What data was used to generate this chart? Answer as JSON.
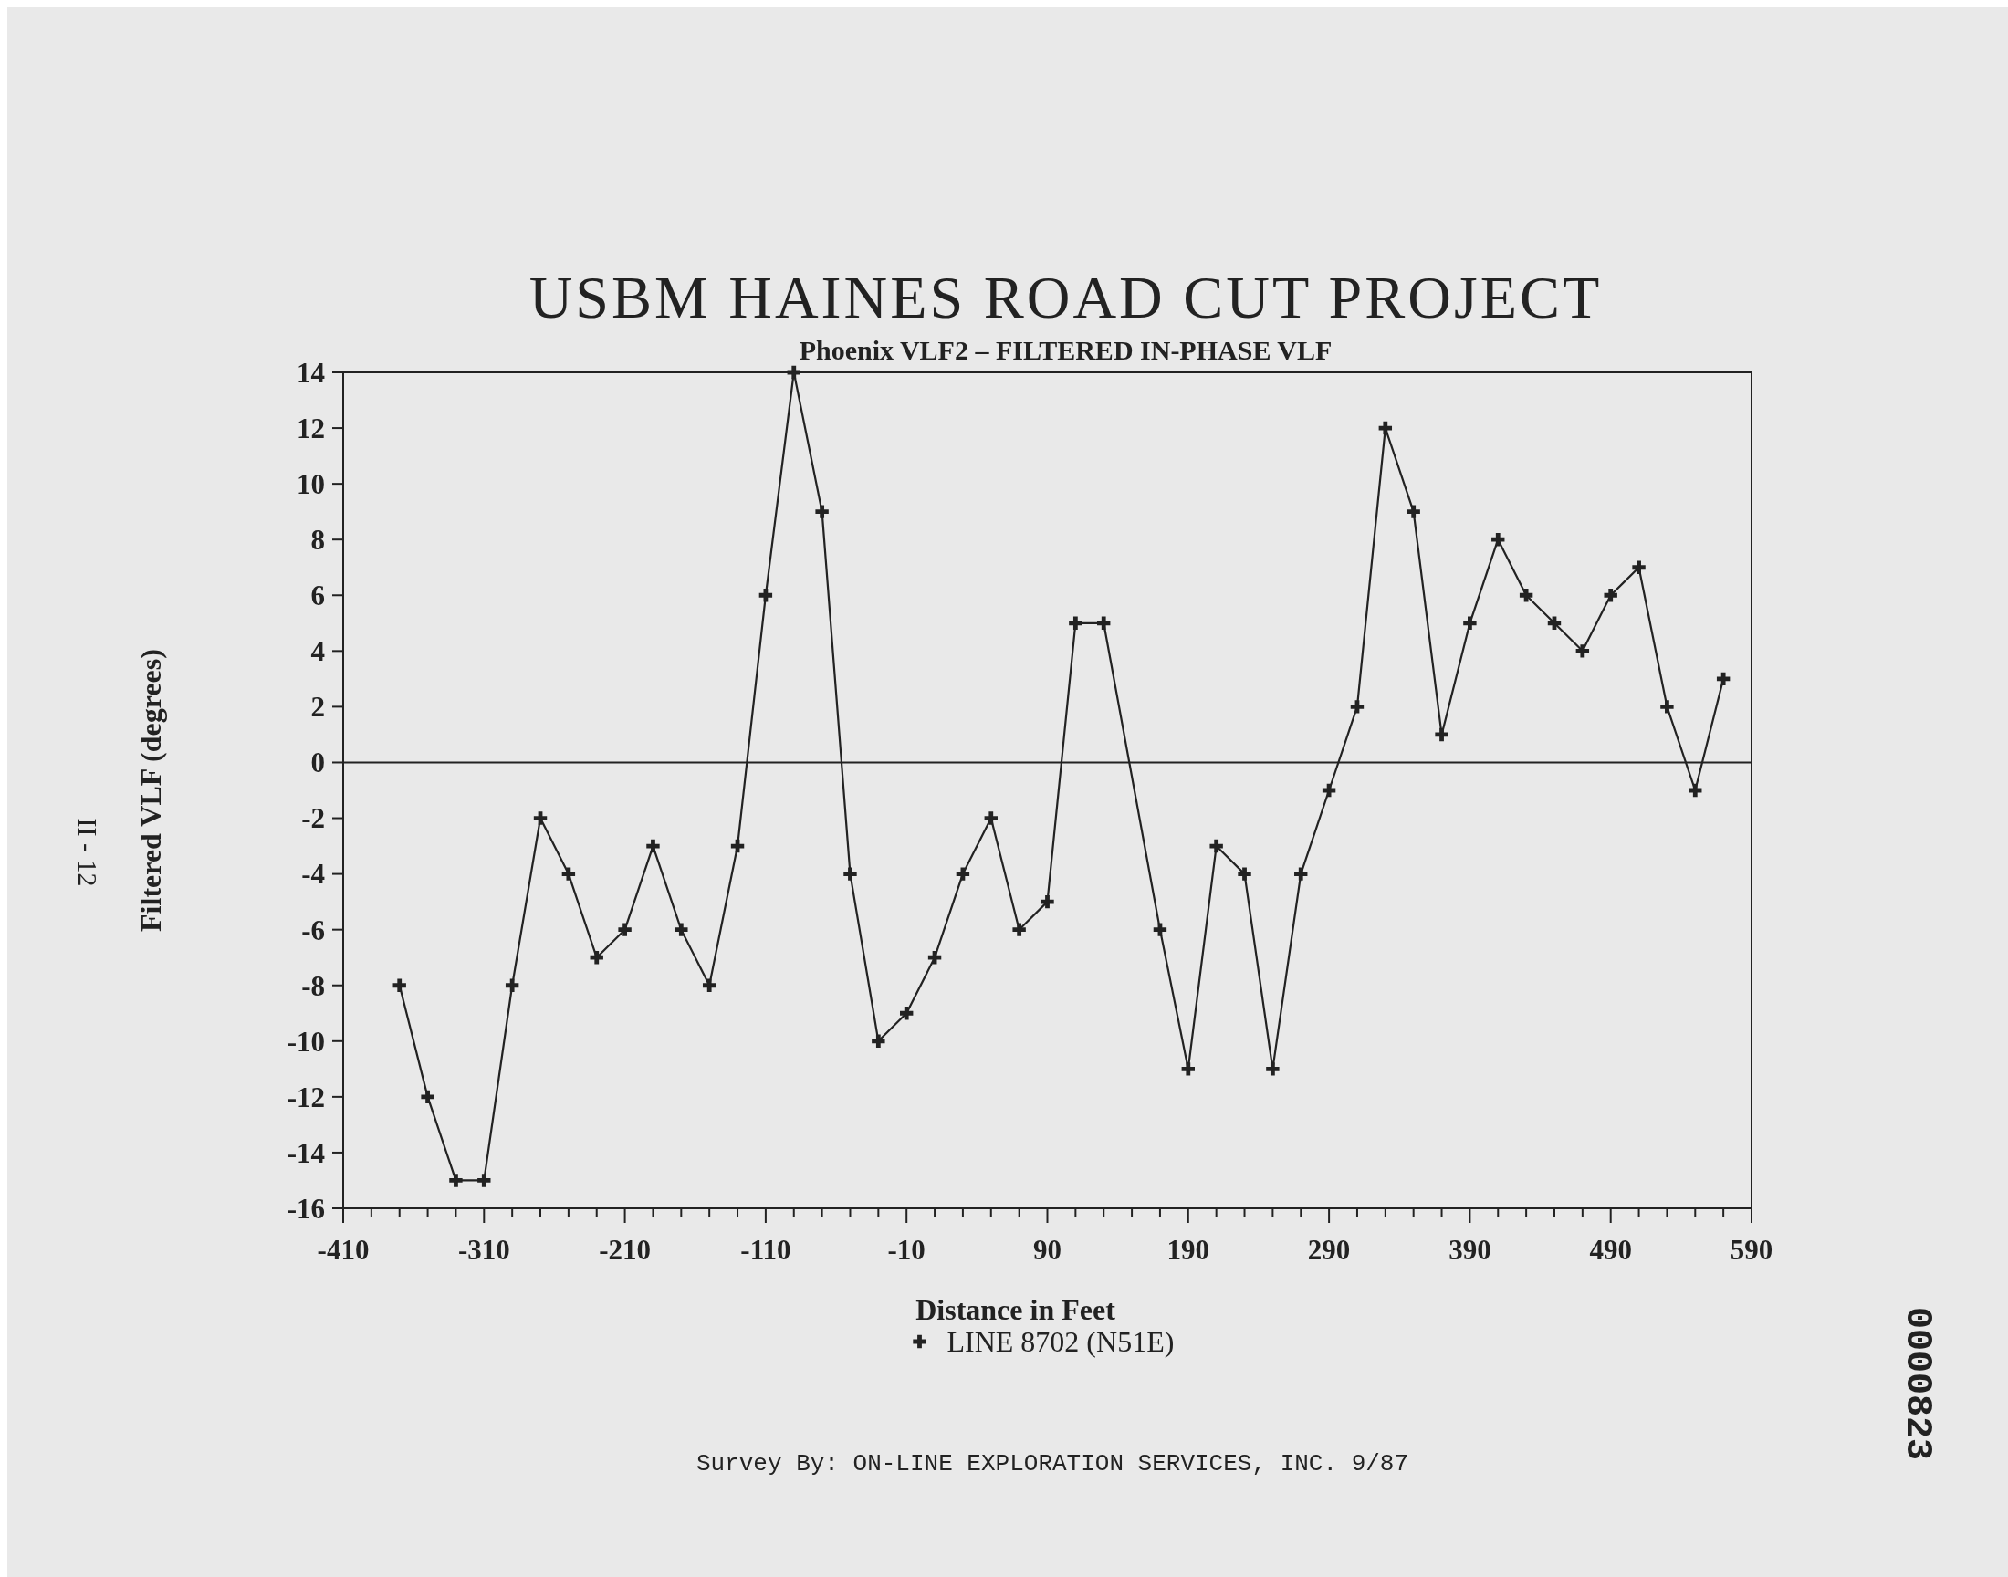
{
  "chart_data": {
    "type": "line",
    "title": "USBM HAINES ROAD CUT PROJECT",
    "subtitle": "Phoenix VLF2 – FILTERED IN-PHASE VLF",
    "xlabel": "Distance in Feet",
    "ylabel": "Filtered VLF (degrees)",
    "annotations": [
      "Survey By:  ON-LINE EXPLORATION SERVICES, INC.  9/87",
      "II - 12",
      "0000823"
    ],
    "series": [
      {
        "name": "LINE 8702 (N51E)",
        "color": "#222222",
        "x": [
          -370,
          -350,
          -330,
          -310,
          -290,
          -270,
          -250,
          -230,
          -210,
          -190,
          -170,
          -150,
          -130,
          -110,
          -90,
          -70,
          -50,
          -30,
          -10,
          10,
          30,
          50,
          70,
          90,
          110,
          130,
          170,
          190,
          210,
          230,
          250,
          270,
          290,
          310,
          330,
          350,
          370,
          390,
          410,
          430,
          450,
          470,
          490,
          510,
          530,
          550,
          570
        ],
        "values": [
          -8,
          -12,
          -15,
          -15,
          -8,
          -2,
          -4,
          -7,
          -6,
          -3,
          -6,
          -8,
          -3,
          6,
          14,
          9,
          -4,
          -10,
          -9,
          -7,
          -4,
          -2,
          -6,
          -5,
          5,
          5,
          -6,
          -11,
          -3,
          -4,
          -11,
          -4,
          -1,
          2,
          12,
          9,
          1,
          5,
          8,
          6,
          5,
          4,
          6,
          7,
          2,
          -1,
          3
        ]
      }
    ],
    "xlim": [
      -410,
      590
    ],
    "xticks": [
      -410,
      {
        "value": -390,
        "label": null
      },
      {
        "value": -370,
        "label": null
      },
      {
        "value": -350,
        "label": null
      },
      {
        "value": -330,
        "label": null
      },
      -310,
      {
        "value": -290,
        "label": null
      },
      {
        "value": -270,
        "label": null
      },
      {
        "value": -250,
        "label": null
      },
      {
        "value": -230,
        "label": null
      },
      -210,
      {
        "value": -190,
        "label": null
      },
      {
        "value": -170,
        "label": null
      },
      {
        "value": -150,
        "label": null
      },
      {
        "value": -130,
        "label": null
      },
      -110,
      {
        "value": -90,
        "label": null
      },
      {
        "value": -70,
        "label": null
      },
      {
        "value": -50,
        "label": null
      },
      {
        "value": -30,
        "label": null
      },
      -10,
      {
        "value": 10,
        "label": null
      },
      {
        "value": 30,
        "label": null
      },
      {
        "value": 50,
        "label": null
      },
      {
        "value": 70,
        "label": null
      },
      90,
      {
        "value": 110,
        "label": null
      },
      {
        "value": 130,
        "label": null
      },
      {
        "value": 150,
        "label": null
      },
      {
        "value": 170,
        "label": null
      },
      190,
      {
        "value": 210,
        "label": null
      },
      {
        "value": 230,
        "label": null
      },
      {
        "value": 250,
        "label": null
      },
      {
        "value": 270,
        "label": null
      },
      290,
      {
        "value": 310,
        "label": null
      },
      {
        "value": 330,
        "label": null
      },
      {
        "value": 350,
        "label": null
      },
      {
        "value": 370,
        "label": null
      },
      390,
      {
        "value": 410,
        "label": null
      },
      {
        "value": 430,
        "label": null
      },
      {
        "value": 450,
        "label": null
      },
      {
        "value": 470,
        "label": null
      },
      490,
      {
        "value": 510,
        "label": null
      },
      {
        "value": 530,
        "label": null
      },
      {
        "value": 550,
        "label": null
      },
      {
        "value": 570,
        "label": null
      },
      590
    ],
    "ylim": [
      -16,
      14
    ],
    "yticks": [
      -16,
      -14,
      -12,
      -10,
      -8,
      -6,
      -4,
      -2,
      0,
      2,
      4,
      6,
      8,
      10,
      12,
      14
    ],
    "ref_lines": [
      {
        "axis": "y",
        "value": 0,
        "color": "#222222"
      }
    ],
    "grid": false,
    "legend": "bottom",
    "marker": "cross",
    "line_style": "solid"
  }
}
